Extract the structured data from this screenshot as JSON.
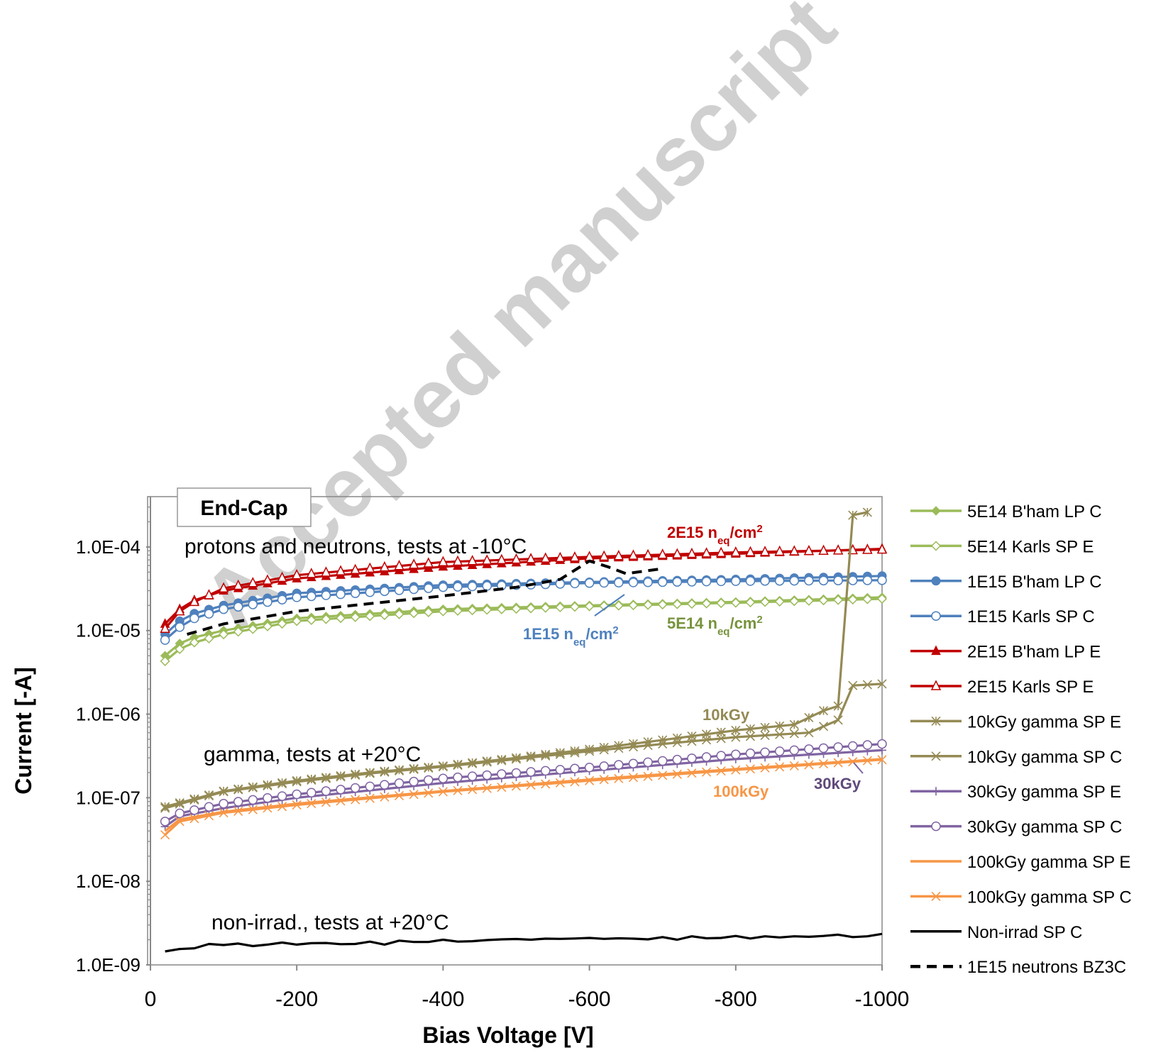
{
  "watermark": "Accepted manuscript",
  "chart_data": {
    "type": "line",
    "xlabel": "Bias Voltage [V]",
    "ylabel": "Current [-A]",
    "xlim": [
      0,
      -1000
    ],
    "ylim": [
      1e-09,
      0.0004
    ],
    "yscale": "log",
    "x_ticks": [
      "0",
      "-200",
      "-400",
      "-600",
      "-800",
      "-1000"
    ],
    "x_tick_values": [
      0,
      -200,
      -400,
      -600,
      -800,
      -1000
    ],
    "y_ticks": [
      "1.0E-09",
      "1.0E-08",
      "1.0E-07",
      "1.0E-06",
      "1.0E-05",
      "1.0E-04"
    ],
    "y_tick_values": [
      1e-09,
      1e-08,
      1e-07,
      1e-06,
      1e-05,
      0.0001
    ],
    "grid": false,
    "legend_position": "right",
    "title_box": "End-Cap",
    "annotations": {
      "protons": "protons and neutrons, tests at -10°C",
      "gamma": "gamma, tests at +20°C",
      "nonirrad": "non-irrad., tests at +20°C",
      "label_2e15": "2E15 n",
      "label_1e15": "1E15 n",
      "label_5e14": "5E14 n",
      "sub_eq": "eq",
      "unit_cm": "/cm",
      "sup_2": "2",
      "label_10kgy": "10kGy",
      "label_30kgy": "30kGy",
      "label_100kgy": "100kGy"
    },
    "series": [
      {
        "name": "5E14 B'ham LP C",
        "color": "#9bbb59",
        "marker": "diamond-filled",
        "dash": false,
        "x": [
          -20,
          -40,
          -60,
          -100,
          -200,
          -400,
          -600,
          -800,
          -1000
        ],
        "y": [
          5e-06,
          7e-06,
          8.3e-06,
          1e-05,
          1.4e-05,
          1.8e-05,
          2e-05,
          2.2e-05,
          2.5e-05
        ]
      },
      {
        "name": "5E14 Karls SP E",
        "color": "#9bbb59",
        "marker": "diamond-open",
        "dash": false,
        "x": [
          -20,
          -40,
          -60,
          -100,
          -200,
          -400,
          -600,
          -800,
          -1000
        ],
        "y": [
          4.3e-06,
          6e-06,
          7.2e-06,
          9e-06,
          1.3e-05,
          1.7e-05,
          1.95e-05,
          2.15e-05,
          2.4e-05
        ]
      },
      {
        "name": "1E15 B'ham LP C",
        "color": "#4f81bd",
        "marker": "circle-filled",
        "dash": false,
        "x": [
          -20,
          -40,
          -60,
          -100,
          -200,
          -400,
          -600,
          -800,
          -1000
        ],
        "y": [
          9e-06,
          1.3e-05,
          1.6e-05,
          2e-05,
          2.8e-05,
          3.5e-05,
          3.8e-05,
          4.1e-05,
          4.5e-05
        ]
      },
      {
        "name": "1E15 Karls SP C",
        "color": "#4f81bd",
        "marker": "circle-open",
        "dash": false,
        "x": [
          -20,
          -40,
          -60,
          -100,
          -200,
          -400,
          -600,
          -800,
          -1000
        ],
        "y": [
          7.7e-06,
          1.1e-05,
          1.4e-05,
          1.8e-05,
          2.5e-05,
          3.3e-05,
          3.7e-05,
          3.9e-05,
          4e-05
        ]
      },
      {
        "name": "2E15  B'ham LP E",
        "color": "#c00000",
        "marker": "triangle-filled",
        "dash": false,
        "x": [
          -20,
          -40,
          -60,
          -100,
          -200,
          -400,
          -600,
          -800,
          -1000
        ],
        "y": [
          1.2e-05,
          1.8e-05,
          2.3e-05,
          3e-05,
          4.2e-05,
          5.8e-05,
          7.3e-05,
          8.3e-05,
          9.5e-05
        ]
      },
      {
        "name": "2E15 Karls SP E",
        "color": "#c00000",
        "marker": "triangle-open",
        "dash": false,
        "x": [
          -20,
          -40,
          -60,
          -100,
          -200,
          -400,
          -600,
          -800,
          -1000
        ],
        "y": [
          1.05e-05,
          1.7e-05,
          2.2e-05,
          3.2e-05,
          4.6e-05,
          6.6e-05,
          7.6e-05,
          8.6e-05,
          9.3e-05
        ]
      },
      {
        "name": "10kGy gamma SP E",
        "color": "#948a54",
        "marker": "star",
        "dash": false,
        "x": [
          -20,
          -100,
          -200,
          -300,
          -400,
          -500,
          -600,
          -700,
          -800,
          -880,
          -920,
          -940,
          -960,
          -980
        ],
        "y": [
          7.8e-08,
          1.2e-07,
          1.6e-07,
          2e-07,
          2.4e-07,
          3e-07,
          3.8e-07,
          4.9e-07,
          6.4e-07,
          7.5e-07,
          1.1e-06,
          1.25e-06,
          0.00024,
          0.00026
        ]
      },
      {
        "name": "10kGy gamma SP C",
        "color": "#948a54",
        "marker": "x",
        "dash": false,
        "x": [
          -20,
          -100,
          -200,
          -300,
          -400,
          -500,
          -600,
          -700,
          -800,
          -900,
          -940,
          -960,
          -1000
        ],
        "y": [
          7.5e-08,
          1.18e-07,
          1.55e-07,
          1.95e-07,
          2.35e-07,
          2.9e-07,
          3.6e-07,
          4.4e-07,
          5.3e-07,
          6e-07,
          8.5e-07,
          2.2e-06,
          2.3e-06
        ]
      },
      {
        "name": "30kGy gamma SP E",
        "color": "#8064a2",
        "marker": "plus",
        "dash": false,
        "x": [
          -20,
          -40,
          -100,
          -200,
          -400,
          -600,
          -800,
          -1000
        ],
        "y": [
          4.5e-08,
          6e-08,
          7.5e-08,
          1e-07,
          1.5e-07,
          2.1e-07,
          2.9e-07,
          3.7e-07
        ]
      },
      {
        "name": "30kGy gamma SP C",
        "color": "#8064a2",
        "marker": "circle-open",
        "dash": false,
        "x": [
          -20,
          -40,
          -100,
          -200,
          -400,
          -600,
          -800,
          -1000
        ],
        "y": [
          5.2e-08,
          6.5e-08,
          8.5e-08,
          1.1e-07,
          1.7e-07,
          2.3e-07,
          3.3e-07,
          4.4e-07
        ]
      },
      {
        "name": "100kGy gamma SP E",
        "color": "#f79646",
        "marker": "none",
        "dash": false,
        "x": [
          -20,
          -40,
          -100,
          -200,
          -400,
          -600,
          -800,
          -1000
        ],
        "y": [
          4e-08,
          5.5e-08,
          6.8e-08,
          8.5e-08,
          1.2e-07,
          1.65e-07,
          2.2e-07,
          2.9e-07
        ]
      },
      {
        "name": "100kGy gamma SP C",
        "color": "#f79646",
        "marker": "x",
        "dash": false,
        "x": [
          -20,
          -40,
          -100,
          -200,
          -400,
          -600,
          -800,
          -1000
        ],
        "y": [
          3.6e-08,
          5.2e-08,
          6.6e-08,
          8.2e-08,
          1.18e-07,
          1.6e-07,
          2.15e-07,
          2.85e-07
        ]
      },
      {
        "name": " Non-irrad SP C",
        "color": "#000000",
        "marker": "none",
        "dash": false,
        "x": [
          -20,
          -40,
          -60,
          -80,
          -100,
          -120,
          -140,
          -160,
          -180,
          -200,
          -220,
          -240,
          -260,
          -280,
          -300,
          -320,
          -340,
          -360,
          -380,
          -400,
          -420,
          -440,
          -460,
          -480,
          -500,
          -520,
          -540,
          -560,
          -580,
          -600,
          -620,
          -640,
          -660,
          -680,
          -700,
          -720,
          -740,
          -760,
          -780,
          -800,
          -820,
          -840,
          -860,
          -880,
          -900,
          -920,
          -940,
          -960,
          -980,
          -1000
        ],
        "y": [
          1.45e-09,
          1.55e-09,
          1.58e-09,
          1.78e-09,
          1.73e-09,
          1.8e-09,
          1.68e-09,
          1.75e-09,
          1.85e-09,
          1.75e-09,
          1.82e-09,
          1.83e-09,
          1.77e-09,
          1.78e-09,
          1.9e-09,
          1.75e-09,
          1.95e-09,
          1.88e-09,
          1.88e-09,
          2e-09,
          1.9e-09,
          1.92e-09,
          1.98e-09,
          2.02e-09,
          2.04e-09,
          2e-09,
          2.06e-09,
          2.05e-09,
          2.07e-09,
          2.1e-09,
          2.05e-09,
          2.08e-09,
          2.06e-09,
          2.02e-09,
          2.15e-09,
          2e-09,
          2.2e-09,
          2.08e-09,
          2.1e-09,
          2.22e-09,
          2.07e-09,
          2.2e-09,
          2.13e-09,
          2.2e-09,
          2.17e-09,
          2.22e-09,
          2.3e-09,
          2.15e-09,
          2.2e-09,
          2.35e-09
        ]
      },
      {
        "name": "1E15 neutrons BZ3C",
        "color": "#000000",
        "marker": "none",
        "dash": true,
        "x": [
          -50,
          -100,
          -200,
          -300,
          -400,
          -500,
          -560,
          -600,
          -625,
          -650,
          -700
        ],
        "y": [
          9e-06,
          1.2e-05,
          1.7e-05,
          2.1e-05,
          2.6e-05,
          3.3e-05,
          4.1e-05,
          6.8e-05,
          5.8e-05,
          4.8e-05,
          5.5e-05
        ]
      }
    ]
  }
}
